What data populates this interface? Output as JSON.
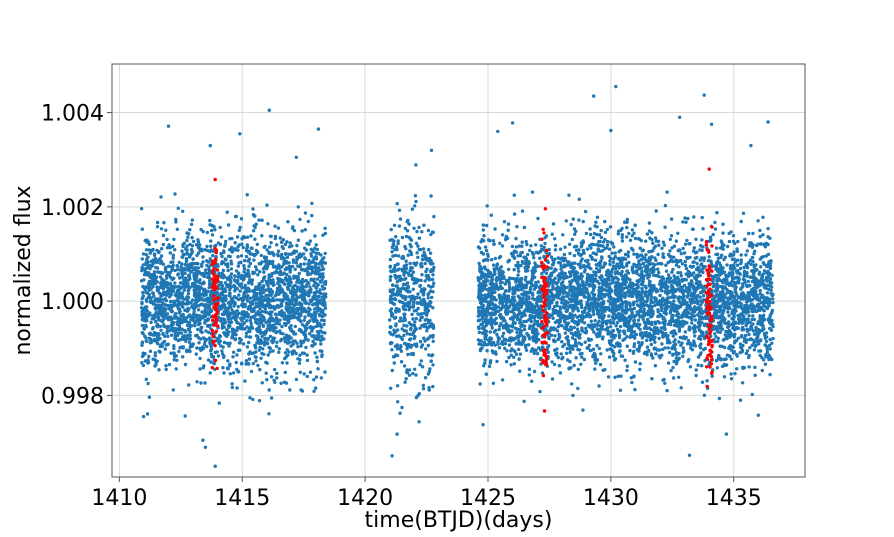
{
  "chart_data": {
    "type": "scatter",
    "title": "",
    "xlabel": "time(BTJD)(days)",
    "ylabel": "normalized flux",
    "xlim": [
      1409.7,
      1437.9
    ],
    "ylim": [
      0.99627,
      1.00503
    ],
    "xticks": [
      1410,
      1415,
      1420,
      1425,
      1430,
      1435
    ],
    "xtick_labels": [
      "1410",
      "1415",
      "1420",
      "1425",
      "1430",
      "1435"
    ],
    "yticks": [
      0.998,
      1.0,
      1.002,
      1.004
    ],
    "ytick_labels": [
      "0.998",
      "1.000",
      "1.002",
      "1.004"
    ],
    "grid": true,
    "series": [
      {
        "color": "#1f77b4",
        "segments": [
          {
            "x_start": 1410.9,
            "x_end": 1418.4,
            "center": 1.0,
            "sigma": 0.00072,
            "count": 2600
          },
          {
            "x_start": 1421.0,
            "x_end": 1422.8,
            "center": 1.0,
            "sigma": 0.00085,
            "count": 500
          },
          {
            "x_start": 1424.6,
            "x_end": 1436.6,
            "center": 1.0,
            "sigma": 0.00068,
            "count": 4200
          }
        ],
        "outliers": [
          {
            "x": 1412.0,
            "y": 1.00371
          },
          {
            "x": 1413.7,
            "y": 1.0033
          },
          {
            "x": 1414.9,
            "y": 1.00355
          },
          {
            "x": 1416.1,
            "y": 1.00405
          },
          {
            "x": 1417.2,
            "y": 1.00305
          },
          {
            "x": 1418.1,
            "y": 1.00365
          },
          {
            "x": 1422.7,
            "y": 1.0032
          },
          {
            "x": 1425.4,
            "y": 1.0036
          },
          {
            "x": 1426.0,
            "y": 1.00378
          },
          {
            "x": 1429.3,
            "y": 1.00435
          },
          {
            "x": 1430.2,
            "y": 1.00455
          },
          {
            "x": 1430.0,
            "y": 1.00362
          },
          {
            "x": 1432.8,
            "y": 1.0039
          },
          {
            "x": 1433.8,
            "y": 1.00437
          },
          {
            "x": 1434.1,
            "y": 1.00375
          },
          {
            "x": 1435.7,
            "y": 1.0033
          },
          {
            "x": 1436.4,
            "y": 1.0038
          },
          {
            "x": 1413.4,
            "y": 0.99705
          },
          {
            "x": 1413.9,
            "y": 0.9965
          },
          {
            "x": 1413.5,
            "y": 0.9969
          },
          {
            "x": 1421.1,
            "y": 0.99672
          },
          {
            "x": 1421.3,
            "y": 0.99718
          },
          {
            "x": 1424.8,
            "y": 0.99738
          },
          {
            "x": 1433.2,
            "y": 0.99673
          },
          {
            "x": 1434.7,
            "y": 0.99718
          },
          {
            "x": 1436.0,
            "y": 0.99758
          }
        ]
      },
      {
        "color": "#ff0000",
        "segments": [
          {
            "x_center": 1413.9,
            "x_halfwidth": 0.12,
            "center": 0.99995,
            "sigma": 0.0006,
            "count": 70
          },
          {
            "x_center": 1427.3,
            "x_halfwidth": 0.12,
            "center": 0.99995,
            "sigma": 0.0007,
            "count": 80
          },
          {
            "x_center": 1434.0,
            "x_halfwidth": 0.12,
            "center": 0.99995,
            "sigma": 0.0007,
            "count": 80
          }
        ],
        "outliers": [
          {
            "x": 1413.9,
            "y": 1.00258
          },
          {
            "x": 1427.3,
            "y": 0.99767
          },
          {
            "x": 1434.0,
            "y": 1.0028
          }
        ]
      }
    ]
  }
}
